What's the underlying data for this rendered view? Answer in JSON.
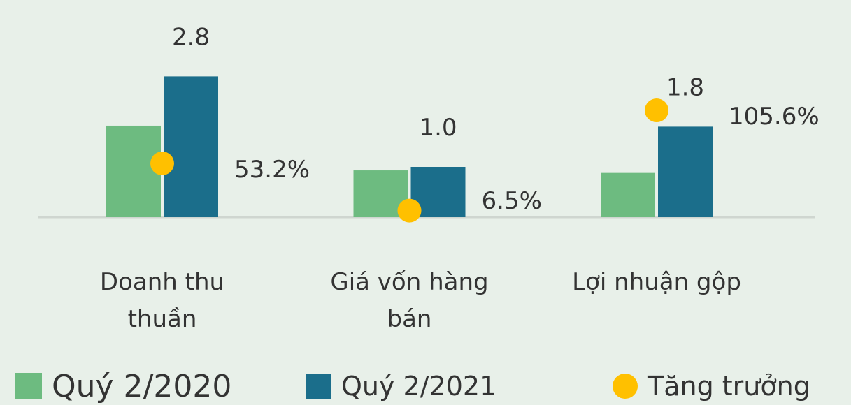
{
  "chart_data": {
    "type": "bar",
    "categories": [
      "Doanh thu thuần",
      "Giá vốn hàng bán",
      "Lợi nhuận gộp"
    ],
    "series": [
      {
        "name": "Quý 2/2020",
        "color": "#6dbb80",
        "values": [
          1.82,
          0.93,
          0.88
        ]
      },
      {
        "name": "Quý 2/2021",
        "color": "#1b6e8b",
        "values": [
          2.8,
          1.0,
          1.8
        ],
        "value_labels": [
          "2.8",
          "1.0",
          "1.8"
        ]
      },
      {
        "name": "Tăng trưởng",
        "type": "scatter",
        "axis": "y2",
        "color": "#ffc000",
        "values": [
          53.2,
          6.5,
          105.6
        ],
        "value_labels": [
          "53.2%",
          "6.5%",
          "105.6%"
        ]
      }
    ],
    "ylim": [
      0,
      3.5
    ],
    "y2lim": [
      0,
      174
    ]
  }
}
